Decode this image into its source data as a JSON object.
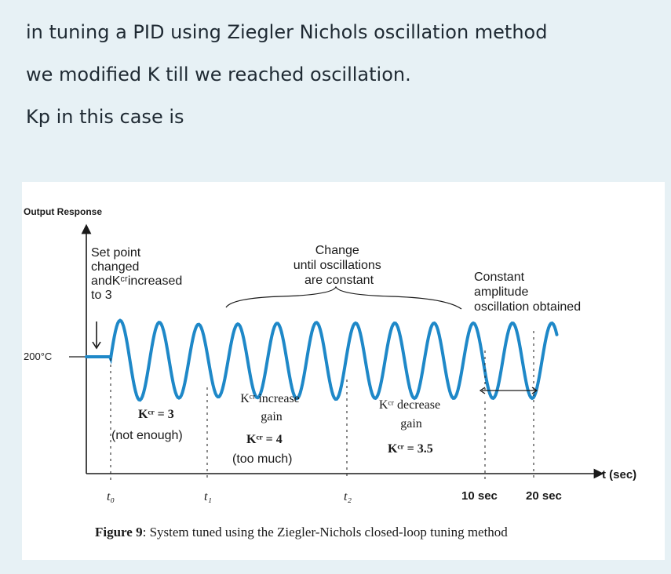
{
  "question": {
    "line1": "in tuning a PID using Ziegler Nichols oscillation method",
    "line2": "we modified K till we reached oscillation.",
    "line3": "Kp in this case is"
  },
  "figure": {
    "y_axis_title": "Output Response",
    "setpoint_label": "200°C",
    "x_axis_label": "t (sec)",
    "time_ticks": [
      "t₀",
      "t₁",
      "t₂",
      "10 sec",
      "20 sec"
    ],
    "ann_set_point": [
      "Set point",
      "changed",
      "andKᶜʳincreased",
      "to 3"
    ],
    "ann_change": [
      "Change",
      "until oscillations",
      "are constant"
    ],
    "ann_constant": [
      "Constant",
      "amplitude",
      "oscillation obtained"
    ],
    "kcr3": "Kᶜʳ = 3",
    "not_enough": "(not enough)",
    "kcr_increase": [
      "Kᶜʳ increase",
      "gain"
    ],
    "kcr4": "Kᶜʳ = 4",
    "too_much": "(too much)",
    "kcr_decrease": [
      "Kᶜʳ decrease",
      "gain"
    ],
    "kcr35": "Kᶜʳ = 3.5",
    "caption_bold": "Figure 9",
    "caption_rest": ": System tuned using the Ziegler-Nichols closed-loop tuning method",
    "colors": {
      "curve": "#1e88c8",
      "text": "#1a1a1a"
    }
  }
}
